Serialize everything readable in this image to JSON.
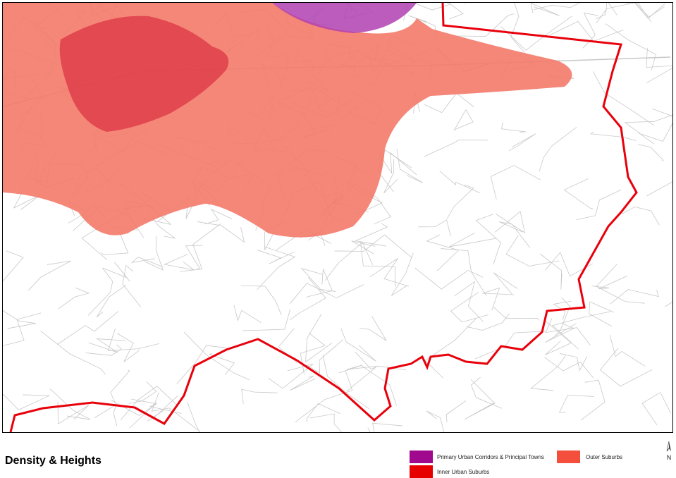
{
  "map": {
    "title": "Density & Heights",
    "legend": [
      {
        "label": "Primary Urban Corridors & Principal Towns",
        "color": "#a0088e"
      },
      {
        "label": "Outer Suburbs",
        "color": "#f44e3c"
      },
      {
        "label": "Inner Urban Suburbs",
        "color": "#e60000"
      }
    ],
    "north_arrow": {
      "label": "N",
      "icon": "north-arrow-icon"
    },
    "colors": {
      "boundary": "#e8000b",
      "outer_fill": "#f47a6a",
      "inner_fill": "#d8283a",
      "corridor_fill": "#b040b0",
      "roads": "#c8c8c8"
    }
  }
}
